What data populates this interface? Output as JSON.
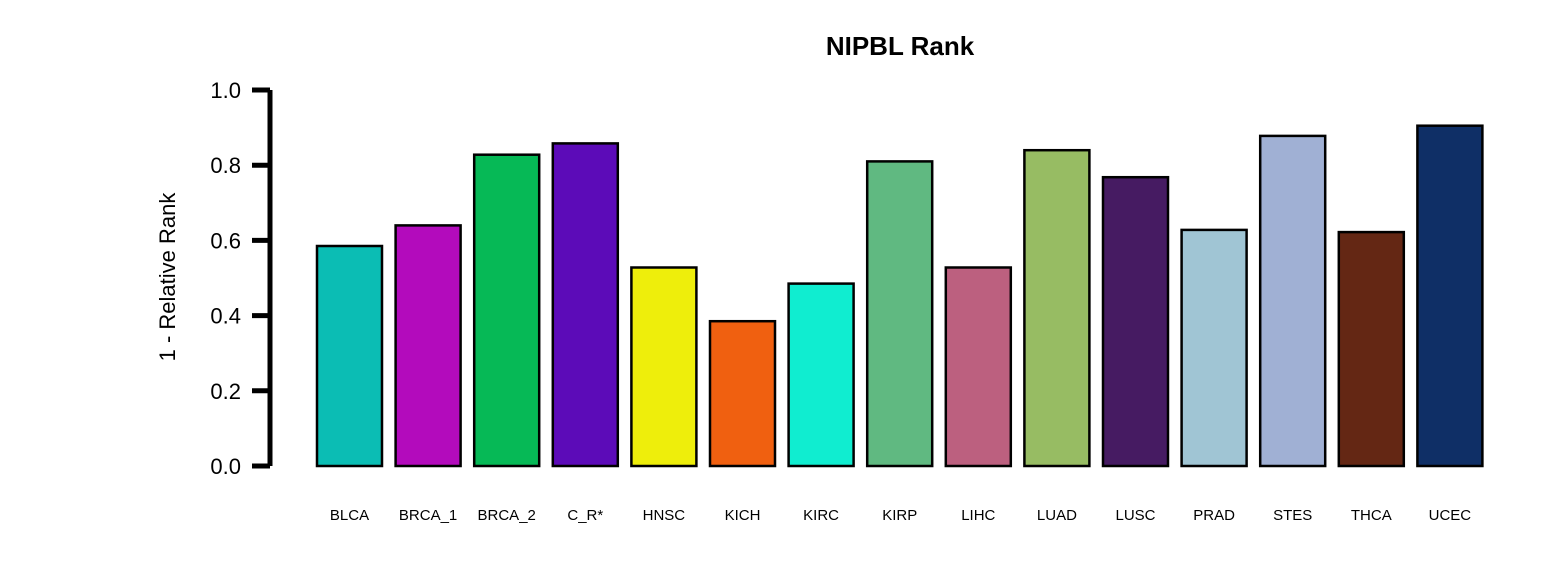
{
  "chart_data": {
    "type": "bar",
    "title": "NIPBL Rank",
    "xlabel": "",
    "ylabel": "1 - Relative Rank",
    "ylim": [
      0,
      1.0
    ],
    "yticks": [
      "0.0",
      "0.2",
      "0.4",
      "0.6",
      "0.8",
      "1.0"
    ],
    "ytick_values": [
      0,
      0.2,
      0.4,
      0.6,
      0.8,
      1.0
    ],
    "grid": false,
    "legend": "none",
    "categories": [
      "BLCA",
      "BRCA_1",
      "BRCA_2",
      "C_R*",
      "HNSC",
      "KICH",
      "KIRC",
      "KIRP",
      "LIHC",
      "LUAD",
      "LUSC",
      "PRAD",
      "STES",
      "THCA",
      "UCEC"
    ],
    "values": [
      0.585,
      0.64,
      0.828,
      0.858,
      0.528,
      0.385,
      0.485,
      0.81,
      0.528,
      0.84,
      0.768,
      0.628,
      0.878,
      0.622,
      0.905
    ],
    "colors": [
      "#0BBDB4",
      "#B30BBC",
      "#06B956",
      "#5C0BB8",
      "#EEEE0B",
      "#F06010",
      "#10EDD0",
      "#60B981",
      "#BC607F",
      "#97BC63",
      "#461B62",
      "#A0C5D4",
      "#A0B0D4",
      "#642714",
      "#0F2F66"
    ],
    "bar_edge_color": "#000000"
  }
}
